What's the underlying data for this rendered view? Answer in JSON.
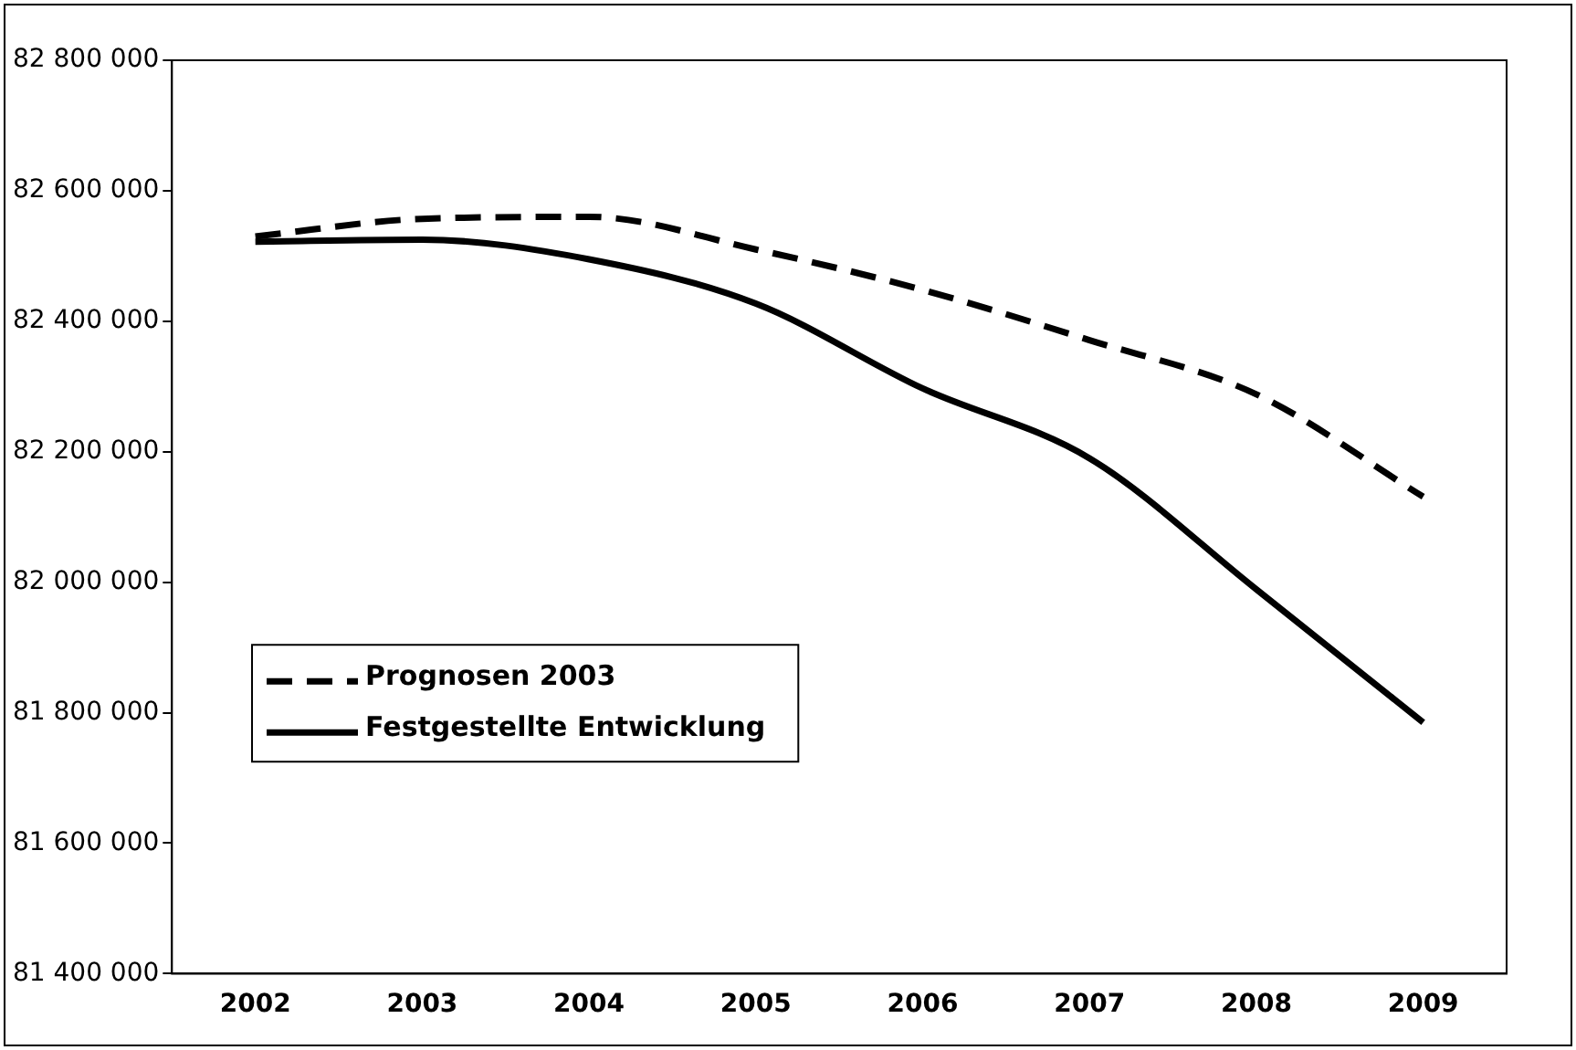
{
  "chart_data": {
    "type": "line",
    "categories": [
      "2002",
      "2003",
      "2004",
      "2005",
      "2006",
      "2007",
      "2008",
      "2009"
    ],
    "series": [
      {
        "name": "Prognosen 2003",
        "color": "#000000",
        "line_style": "dashed",
        "values": [
          82530000,
          82557000,
          82560000,
          82510000,
          82448000,
          82371000,
          82288000,
          82131000
        ]
      },
      {
        "name": "Festgestellte Entwicklung",
        "color": "#000000",
        "line_style": "solid",
        "values": [
          82522000,
          82525000,
          82495000,
          82427000,
          82297000,
          82190000,
          81989000,
          81785000
        ]
      }
    ],
    "ylim": [
      81400000,
      82800000
    ],
    "yticks": [
      81400000,
      81600000,
      81800000,
      82000000,
      82200000,
      82400000,
      82600000,
      82800000
    ],
    "grid": false,
    "legend": "left",
    "marker": "none"
  }
}
